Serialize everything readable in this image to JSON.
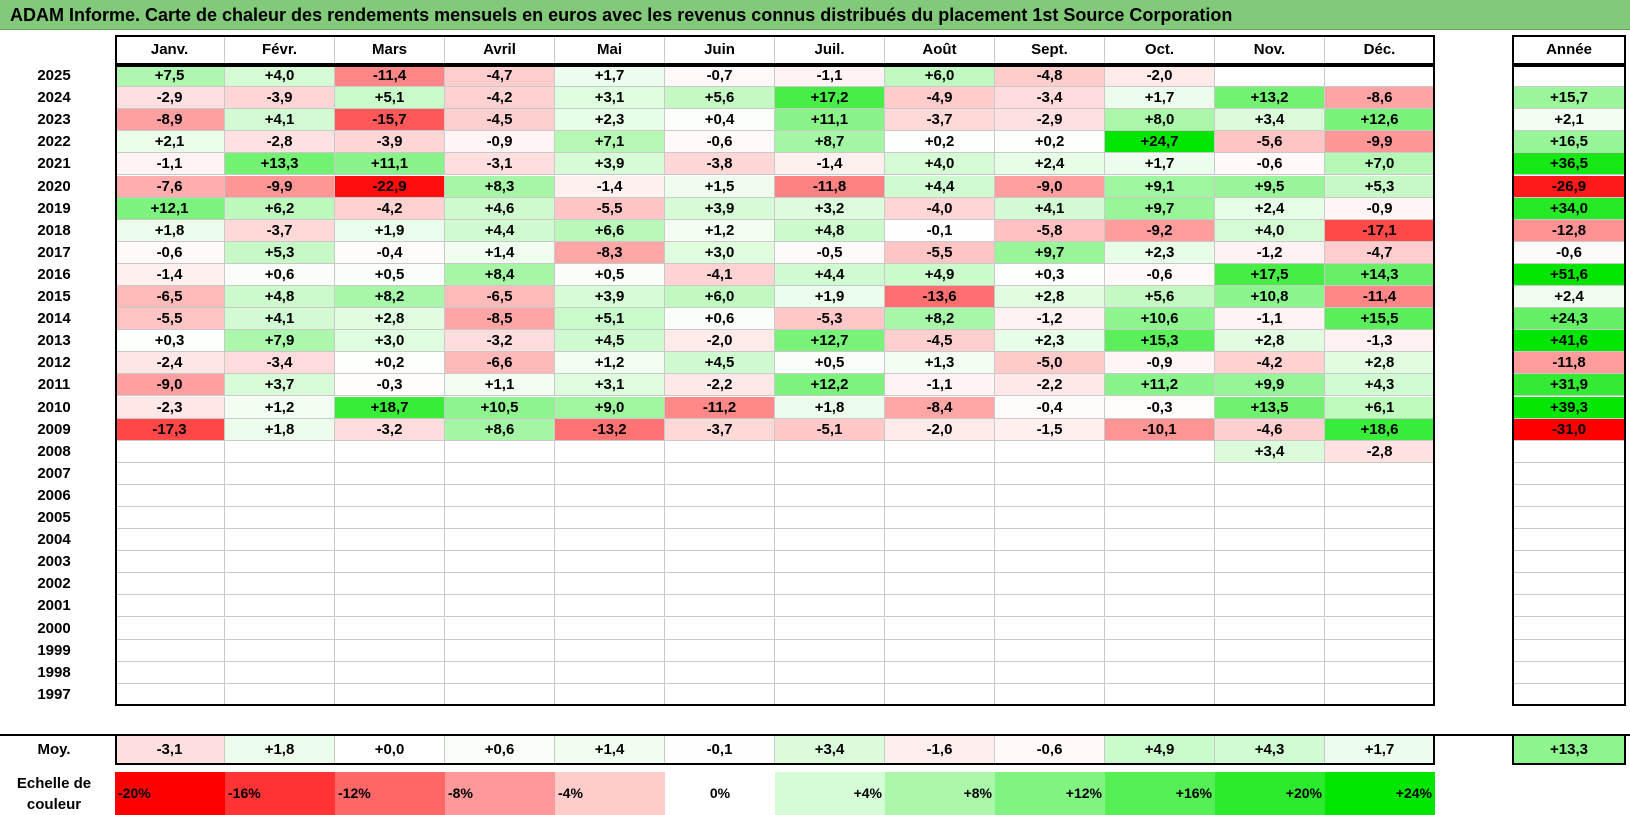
{
  "title": "ADAM Informe. Carte de chaleur des rendements mensuels en euros avec les revenus connus distribués du placement 1st Source Corporation",
  "chart_data": {
    "type": "heatmap",
    "columns": [
      "Janv.",
      "Févr.",
      "Mars",
      "Avril",
      "Mai",
      "Juin",
      "Juil.",
      "Août",
      "Sept.",
      "Oct.",
      "Nov.",
      "Déc."
    ],
    "year_column_label": "Année",
    "average_row_label": "Moy.",
    "rows": [
      {
        "year": "2025",
        "values": [
          "+7,5",
          "+4,0",
          "-11,4",
          "-4,7",
          "+1,7",
          "-0,7",
          "-1,1",
          "+6,0",
          "-4,8",
          "-2,0",
          "",
          ""
        ],
        "annual": ""
      },
      {
        "year": "2024",
        "values": [
          "-2,9",
          "-3,9",
          "+5,1",
          "-4,2",
          "+3,1",
          "+5,6",
          "+17,2",
          "-4,9",
          "-3,4",
          "+1,7",
          "+13,2",
          "-8,6"
        ],
        "annual": "+15,7"
      },
      {
        "year": "2023",
        "values": [
          "-8,9",
          "+4,1",
          "-15,7",
          "-4,5",
          "+2,3",
          "+0,4",
          "+11,1",
          "-3,7",
          "-2,9",
          "+8,0",
          "+3,4",
          "+12,6"
        ],
        "annual": "+2,1"
      },
      {
        "year": "2022",
        "values": [
          "+2,1",
          "-2,8",
          "-3,9",
          "-0,9",
          "+7,1",
          "-0,6",
          "+8,7",
          "+0,2",
          "+0,2",
          "+24,7",
          "-5,6",
          "-9,9"
        ],
        "annual": "+16,5"
      },
      {
        "year": "2021",
        "values": [
          "-1,1",
          "+13,3",
          "+11,1",
          "-3,1",
          "+3,9",
          "-3,8",
          "-1,4",
          "+4,0",
          "+2,4",
          "+1,7",
          "-0,6",
          "+7,0"
        ],
        "annual": "+36,5"
      },
      {
        "year": "2020",
        "values": [
          "-7,6",
          "-9,9",
          "-22,9",
          "+8,3",
          "-1,4",
          "+1,5",
          "-11,8",
          "+4,4",
          "-9,0",
          "+9,1",
          "+9,5",
          "+5,3"
        ],
        "annual": "-26,9"
      },
      {
        "year": "2019",
        "values": [
          "+12,1",
          "+6,2",
          "-4,2",
          "+4,6",
          "-5,5",
          "+3,9",
          "+3,2",
          "-4,0",
          "+4,1",
          "+9,7",
          "+2,4",
          "-0,9"
        ],
        "annual": "+34,0"
      },
      {
        "year": "2018",
        "values": [
          "+1,8",
          "-3,7",
          "+1,9",
          "+4,4",
          "+6,6",
          "+1,2",
          "+4,8",
          "-0,1",
          "-5,8",
          "-9,2",
          "+4,0",
          "-17,1"
        ],
        "annual": "-12,8"
      },
      {
        "year": "2017",
        "values": [
          "-0,6",
          "+5,3",
          "-0,4",
          "+1,4",
          "-8,3",
          "+3,0",
          "-0,5",
          "-5,5",
          "+9,7",
          "+2,3",
          "-1,2",
          "-4,7"
        ],
        "annual": "-0,6"
      },
      {
        "year": "2016",
        "values": [
          "-1,4",
          "+0,6",
          "+0,5",
          "+8,4",
          "+0,5",
          "-4,1",
          "+4,4",
          "+4,9",
          "+0,3",
          "-0,6",
          "+17,5",
          "+14,3"
        ],
        "annual": "+51,6"
      },
      {
        "year": "2015",
        "values": [
          "-6,5",
          "+4,8",
          "+8,2",
          "-6,5",
          "+3,9",
          "+6,0",
          "+1,9",
          "-13,6",
          "+2,8",
          "+5,6",
          "+10,8",
          "-11,4"
        ],
        "annual": "+2,4"
      },
      {
        "year": "2014",
        "values": [
          "-5,5",
          "+4,1",
          "+2,8",
          "-8,5",
          "+5,1",
          "+0,6",
          "-5,3",
          "+8,2",
          "-1,2",
          "+10,6",
          "-1,1",
          "+15,5"
        ],
        "annual": "+24,3"
      },
      {
        "year": "2013",
        "values": [
          "+0,3",
          "+7,9",
          "+3,0",
          "-3,2",
          "+4,5",
          "-2,0",
          "+12,7",
          "-4,5",
          "+2,3",
          "+15,3",
          "+2,8",
          "-1,3"
        ],
        "annual": "+41,6"
      },
      {
        "year": "2012",
        "values": [
          "-2,4",
          "-3,4",
          "+0,2",
          "-6,6",
          "+1,2",
          "+4,5",
          "+0,5",
          "+1,3",
          "-5,0",
          "-0,9",
          "-4,2",
          "+2,8"
        ],
        "annual": "-11,8"
      },
      {
        "year": "2011",
        "values": [
          "-9,0",
          "+3,7",
          "-0,3",
          "+1,1",
          "+3,1",
          "-2,2",
          "+12,2",
          "-1,1",
          "-2,2",
          "+11,2",
          "+9,9",
          "+4,3"
        ],
        "annual": "+31,9"
      },
      {
        "year": "2010",
        "values": [
          "-2,3",
          "+1,2",
          "+18,7",
          "+10,5",
          "+9,0",
          "-11,2",
          "+1,8",
          "-8,4",
          "-0,4",
          "-0,3",
          "+13,5",
          "+6,1"
        ],
        "annual": "+39,3"
      },
      {
        "year": "2009",
        "values": [
          "-17,3",
          "+1,8",
          "-3,2",
          "+8,6",
          "-13,2",
          "-3,7",
          "-5,1",
          "-2,0",
          "-1,5",
          "-10,1",
          "-4,6",
          "+18,6"
        ],
        "annual": "-31,0"
      },
      {
        "year": "2008",
        "values": [
          "",
          "",
          "",
          "",
          "",
          "",
          "",
          "",
          "",
          "",
          "+3,4",
          "-2,8"
        ],
        "annual": ""
      },
      {
        "year": "2007",
        "values": [
          "",
          "",
          "",
          "",
          "",
          "",
          "",
          "",
          "",
          "",
          "",
          ""
        ],
        "annual": ""
      },
      {
        "year": "2006",
        "values": [
          "",
          "",
          "",
          "",
          "",
          "",
          "",
          "",
          "",
          "",
          "",
          ""
        ],
        "annual": ""
      },
      {
        "year": "2005",
        "values": [
          "",
          "",
          "",
          "",
          "",
          "",
          "",
          "",
          "",
          "",
          "",
          ""
        ],
        "annual": ""
      },
      {
        "year": "2004",
        "values": [
          "",
          "",
          "",
          "",
          "",
          "",
          "",
          "",
          "",
          "",
          "",
          ""
        ],
        "annual": ""
      },
      {
        "year": "2003",
        "values": [
          "",
          "",
          "",
          "",
          "",
          "",
          "",
          "",
          "",
          "",
          "",
          ""
        ],
        "annual": ""
      },
      {
        "year": "2002",
        "values": [
          "",
          "",
          "",
          "",
          "",
          "",
          "",
          "",
          "",
          "",
          "",
          ""
        ],
        "annual": ""
      },
      {
        "year": "2001",
        "values": [
          "",
          "",
          "",
          "",
          "",
          "",
          "",
          "",
          "",
          "",
          "",
          ""
        ],
        "annual": ""
      },
      {
        "year": "2000",
        "values": [
          "",
          "",
          "",
          "",
          "",
          "",
          "",
          "",
          "",
          "",
          "",
          ""
        ],
        "annual": ""
      },
      {
        "year": "1999",
        "values": [
          "",
          "",
          "",
          "",
          "",
          "",
          "",
          "",
          "",
          "",
          "",
          ""
        ],
        "annual": ""
      },
      {
        "year": "1998",
        "values": [
          "",
          "",
          "",
          "",
          "",
          "",
          "",
          "",
          "",
          "",
          "",
          ""
        ],
        "annual": ""
      },
      {
        "year": "1997",
        "values": [
          "",
          "",
          "",
          "",
          "",
          "",
          "",
          "",
          "",
          "",
          "",
          ""
        ],
        "annual": ""
      }
    ],
    "averages": [
      "-3,1",
      "+1,8",
      "+0,0",
      "+0,6",
      "+1,4",
      "-0,1",
      "+3,4",
      "-1,6",
      "-0,6",
      "+4,9",
      "+4,3",
      "+1,7"
    ],
    "average_annual": "+13,3",
    "scale_label": "Echelle de couleur",
    "scale": [
      {
        "label": "-20%",
        "value": -20
      },
      {
        "label": "-16%",
        "value": -16
      },
      {
        "label": "-12%",
        "value": -12
      },
      {
        "label": "-8%",
        "value": -8
      },
      {
        "label": "-4%",
        "value": -4
      },
      {
        "label": "0%",
        "value": 0
      },
      {
        "label": "+4%",
        "value": 4
      },
      {
        "label": "+8%",
        "value": 8
      },
      {
        "label": "+12%",
        "value": 12
      },
      {
        "label": "+16%",
        "value": 16
      },
      {
        "label": "+20%",
        "value": 20
      },
      {
        "label": "+24%",
        "value": 24
      }
    ]
  }
}
